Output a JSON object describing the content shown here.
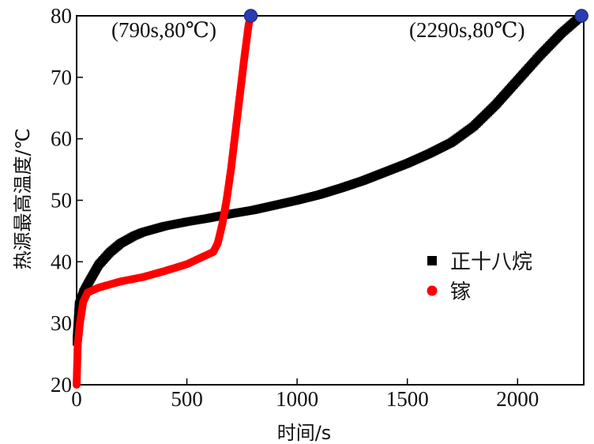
{
  "chart_data": {
    "type": "scatter",
    "title": "",
    "xlabel": "时间/s",
    "ylabel": "热源最高温度/℃",
    "xlim": [
      0,
      2300
    ],
    "ylim": [
      20,
      80
    ],
    "x_ticks": [
      0,
      500,
      1000,
      1500,
      2000
    ],
    "y_ticks": [
      20,
      30,
      40,
      50,
      60,
      70,
      80
    ],
    "grid": false,
    "legend_position": "right",
    "series": [
      {
        "name": "正十八烷",
        "color": "#000000",
        "marker": "square",
        "points": [
          [
            0,
            27
          ],
          [
            10,
            33
          ],
          [
            30,
            35
          ],
          [
            60,
            37
          ],
          [
            100,
            39.5
          ],
          [
            150,
            41.5
          ],
          [
            200,
            43
          ],
          [
            260,
            44.2
          ],
          [
            300,
            44.8
          ],
          [
            400,
            45.8
          ],
          [
            500,
            46.5
          ],
          [
            600,
            47.1
          ],
          [
            700,
            47.8
          ],
          [
            800,
            48.4
          ],
          [
            900,
            49.2
          ],
          [
            1000,
            50.0
          ],
          [
            1100,
            50.9
          ],
          [
            1200,
            52.0
          ],
          [
            1300,
            53.2
          ],
          [
            1400,
            54.6
          ],
          [
            1500,
            56.0
          ],
          [
            1600,
            57.6
          ],
          [
            1700,
            59.4
          ],
          [
            1800,
            62.0
          ],
          [
            1900,
            65.5
          ],
          [
            2000,
            69.5
          ],
          [
            2100,
            73.5
          ],
          [
            2200,
            77.2
          ],
          [
            2290,
            80.0
          ]
        ]
      },
      {
        "name": "镓",
        "color": "#ff0000",
        "marker": "circle",
        "points": [
          [
            0,
            20
          ],
          [
            5,
            26.5
          ],
          [
            15,
            30
          ],
          [
            30,
            33.5
          ],
          [
            50,
            35
          ],
          [
            100,
            35.8
          ],
          [
            200,
            36.8
          ],
          [
            300,
            37.5
          ],
          [
            400,
            38.5
          ],
          [
            500,
            39.6
          ],
          [
            560,
            40.6
          ],
          [
            620,
            41.6
          ],
          [
            640,
            43
          ],
          [
            660,
            46
          ],
          [
            680,
            50
          ],
          [
            700,
            55
          ],
          [
            720,
            61
          ],
          [
            740,
            67
          ],
          [
            760,
            73
          ],
          [
            780,
            78.5
          ],
          [
            790,
            80
          ]
        ]
      }
    ],
    "markers": [
      {
        "x": 790,
        "y": 80,
        "label": "(790s,80℃)",
        "color": "#1f2e8c"
      },
      {
        "x": 2290,
        "y": 80,
        "label": "(2290s,80℃)",
        "color": "#1f2e8c"
      }
    ]
  }
}
